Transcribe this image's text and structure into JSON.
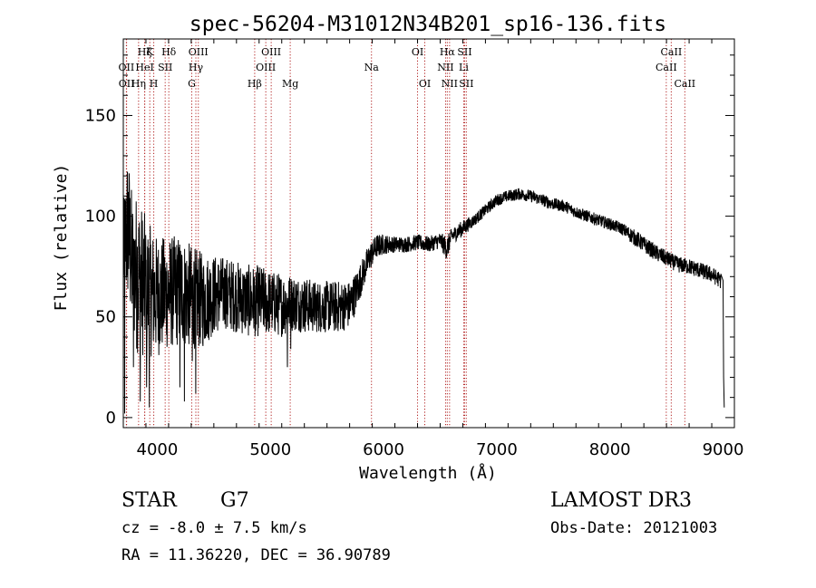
{
  "colors": {
    "spectrum": "#000000",
    "line_marker": "#b22222",
    "axes": "#000000"
  },
  "chart_data": {
    "type": "line",
    "title": "spec-56204-M31012N34B201_sp16-136.fits",
    "xlabel": "Wavelength (Å)",
    "ylabel": "Flux (relative)",
    "xlim": [
      3700,
      9100
    ],
    "ylim": [
      -5,
      188
    ],
    "xticks": [
      4000,
      5000,
      6000,
      7000,
      8000,
      9000
    ],
    "xtick_labels": [
      "4000",
      "5000",
      "6000",
      "7000",
      "8000",
      "9000"
    ],
    "yticks": [
      0,
      50,
      100,
      150
    ],
    "ytick_labels": [
      "0",
      "50",
      "100",
      "150"
    ],
    "x_minor_step": 200,
    "y_minor_step": 10,
    "grid": false,
    "series": [
      {
        "name": "spectrum",
        "envelope": [
          [
            3700,
            80,
            25
          ],
          [
            3740,
            95,
            40
          ],
          [
            3780,
            75,
            35
          ],
          [
            3820,
            72,
            40
          ],
          [
            3860,
            68,
            38
          ],
          [
            3900,
            65,
            35
          ],
          [
            3950,
            62,
            32
          ],
          [
            4000,
            60,
            30
          ],
          [
            4100,
            62,
            28
          ],
          [
            4200,
            63,
            28
          ],
          [
            4300,
            60,
            26
          ],
          [
            4400,
            58,
            24
          ],
          [
            4500,
            61,
            20
          ],
          [
            4600,
            62,
            18
          ],
          [
            4700,
            60,
            18
          ],
          [
            4800,
            58,
            18
          ],
          [
            4900,
            58,
            18
          ],
          [
            5000,
            57,
            16
          ],
          [
            5100,
            56,
            16
          ],
          [
            5200,
            57,
            14
          ],
          [
            5300,
            56,
            14
          ],
          [
            5400,
            55,
            13
          ],
          [
            5500,
            55,
            13
          ],
          [
            5600,
            55,
            13
          ],
          [
            5700,
            56,
            12
          ],
          [
            5760,
            63,
            10
          ],
          [
            5820,
            72,
            8
          ],
          [
            5880,
            80,
            7
          ],
          [
            5940,
            85,
            6
          ],
          [
            6000,
            86,
            5
          ],
          [
            6100,
            86,
            4
          ],
          [
            6200,
            86,
            4
          ],
          [
            6300,
            87,
            4
          ],
          [
            6400,
            86,
            4
          ],
          [
            6500,
            88,
            4
          ],
          [
            6560,
            84,
            6
          ],
          [
            6600,
            90,
            4
          ],
          [
            6700,
            94,
            4
          ],
          [
            6800,
            98,
            3
          ],
          [
            6900,
            103,
            3
          ],
          [
            7000,
            108,
            3
          ],
          [
            7100,
            110,
            3
          ],
          [
            7200,
            111,
            3
          ],
          [
            7300,
            110,
            3
          ],
          [
            7400,
            108,
            3
          ],
          [
            7500,
            106,
            3
          ],
          [
            7600,
            105,
            3
          ],
          [
            7700,
            102,
            3
          ],
          [
            7800,
            100,
            3
          ],
          [
            7900,
            98,
            3
          ],
          [
            8000,
            96,
            3
          ],
          [
            8100,
            94,
            3
          ],
          [
            8200,
            90,
            4
          ],
          [
            8300,
            86,
            4
          ],
          [
            8400,
            82,
            4
          ],
          [
            8500,
            79,
            4
          ],
          [
            8600,
            76,
            4
          ],
          [
            8700,
            75,
            4
          ],
          [
            8800,
            73,
            4
          ],
          [
            8900,
            71,
            4
          ],
          [
            8980,
            68,
            4
          ]
        ],
        "end_drop": [
          [
            9000,
            68
          ],
          [
            9005,
            20
          ],
          [
            9010,
            5
          ]
        ],
        "spikes": [
          [
            3712,
            2
          ],
          [
            3745,
            112
          ],
          [
            3790,
            25
          ],
          [
            3850,
            8
          ],
          [
            3905,
            15
          ],
          [
            3930,
            5
          ],
          [
            4200,
            15
          ],
          [
            4240,
            8
          ],
          [
            4310,
            28
          ],
          [
            4340,
            12
          ],
          [
            4470,
            48
          ],
          [
            4620,
            45
          ],
          [
            4870,
            43
          ],
          [
            5150,
            25
          ],
          [
            5180,
            34
          ]
        ]
      }
    ],
    "line_markers": [
      {
        "label": "Hζ",
        "wavelength": 3889,
        "row": 0
      },
      {
        "label": "OII",
        "wavelength": 3727,
        "row": 1
      },
      {
        "label": "OII",
        "wavelength": 3729,
        "row": 2
      },
      {
        "label": "K",
        "wavelength": 3934,
        "row": 0
      },
      {
        "label": "HeI",
        "wavelength": 3889,
        "row": 1
      },
      {
        "label": "Hη",
        "wavelength": 3835,
        "row": 2
      },
      {
        "label": "H",
        "wavelength": 3969,
        "row": 2
      },
      {
        "label": "SII",
        "wavelength": 4070,
        "row": 1
      },
      {
        "label": "Hδ",
        "wavelength": 4102,
        "row": 0
      },
      {
        "label": "OIII",
        "wavelength": 4363,
        "row": 0
      },
      {
        "label": "Hγ",
        "wavelength": 4341,
        "row": 1
      },
      {
        "label": "G",
        "wavelength": 4305,
        "row": 2
      },
      {
        "label": "OIII",
        "wavelength": 5007,
        "row": 0
      },
      {
        "label": "OIII",
        "wavelength": 4959,
        "row": 1
      },
      {
        "label": "Hβ",
        "wavelength": 4861,
        "row": 2
      },
      {
        "label": "Mg",
        "wavelength": 5175,
        "row": 2
      },
      {
        "label": "Na",
        "wavelength": 5893,
        "row": 1
      },
      {
        "label": "OI",
        "wavelength": 6300,
        "row": 0
      },
      {
        "label": "OI",
        "wavelength": 6364,
        "row": 2
      },
      {
        "label": "Hα",
        "wavelength": 6563,
        "row": 0
      },
      {
        "label": "NII",
        "wavelength": 6548,
        "row": 1
      },
      {
        "label": "NII",
        "wavelength": 6583,
        "row": 2
      },
      {
        "label": "SII",
        "wavelength": 6716,
        "row": 0
      },
      {
        "label": "Li",
        "wavelength": 6708,
        "row": 1
      },
      {
        "label": "SII",
        "wavelength": 6731,
        "row": 2
      },
      {
        "label": "CaII",
        "wavelength": 8542,
        "row": 0
      },
      {
        "label": "CaII",
        "wavelength": 8498,
        "row": 1
      },
      {
        "label": "CaII",
        "wavelength": 8662,
        "row": 2
      }
    ]
  },
  "info": {
    "object_class": "STAR",
    "subclass": "G7",
    "redshift": "cz = -8.0 ± 7.5 km/s",
    "coords": "RA =  11.36220, DEC =  36.90789",
    "survey": "LAMOST DR3",
    "obs_date": "Obs-Date: 20121003"
  }
}
